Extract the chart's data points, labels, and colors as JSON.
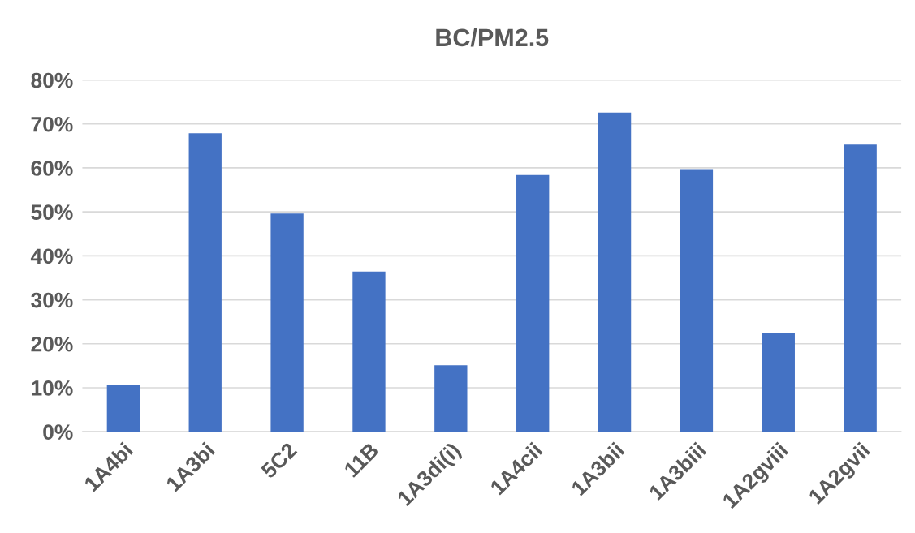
{
  "chart_data": {
    "type": "bar",
    "title": "BC/PM2.5",
    "categories": [
      "1A4bi",
      "1A3bi",
      "5C2",
      "11B",
      "1A3di(i)",
      "1A4cii",
      "1A3bii",
      "1A3biii",
      "1A2gviii",
      "1A2gvii"
    ],
    "values": [
      10.6,
      67.9,
      49.6,
      36.4,
      15.1,
      58.4,
      72.6,
      59.7,
      22.4,
      65.3
    ],
    "color": "#4472c4",
    "ylim": [
      0,
      80
    ],
    "yticks": [
      {
        "value": 0,
        "label": "0%"
      },
      {
        "value": 10,
        "label": "10%"
      },
      {
        "value": 20,
        "label": "20%"
      },
      {
        "value": 30,
        "label": "30%"
      },
      {
        "value": 40,
        "label": "40%"
      },
      {
        "value": 50,
        "label": "50%"
      },
      {
        "value": 60,
        "label": "60%"
      },
      {
        "value": 70,
        "label": "70%"
      },
      {
        "value": 80,
        "label": "80%"
      }
    ],
    "grid": "y",
    "legend": false
  }
}
